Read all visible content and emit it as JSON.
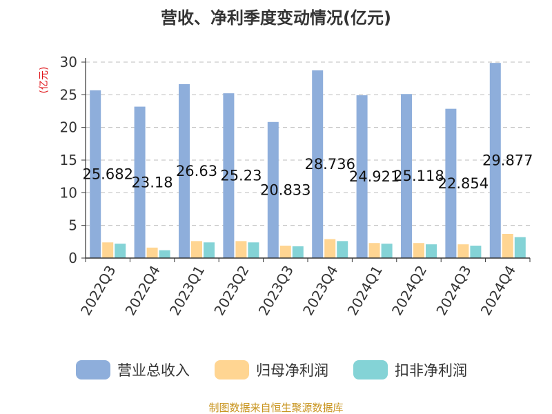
{
  "chart_data": {
    "type": "bar",
    "title": "营收、净利季度变动情况(亿元)",
    "unit": "(亿元)",
    "categories": [
      "2022Q3",
      "2022Q4",
      "2023Q1",
      "2023Q2",
      "2023Q3",
      "2023Q4",
      "2024Q1",
      "2024Q2",
      "2024Q3",
      "2024Q4"
    ],
    "series": [
      {
        "name": "营业总收入",
        "color": "#8eaedb",
        "values": [
          25.682,
          23.18,
          26.63,
          25.23,
          20.833,
          28.736,
          24.921,
          25.118,
          22.854,
          29.877
        ]
      },
      {
        "name": "归母净利润",
        "color": "#ffd592",
        "values": [
          2.4,
          1.6,
          2.6,
          2.6,
          1.9,
          2.9,
          2.3,
          2.3,
          2.1,
          3.7
        ]
      },
      {
        "name": "扣非净利润",
        "color": "#84d3d6",
        "values": [
          2.2,
          1.2,
          2.4,
          2.4,
          1.8,
          2.6,
          2.2,
          2.1,
          1.9,
          3.2
        ]
      }
    ],
    "data_labels": [
      "25.682",
      "23.18",
      "26.63",
      "25.23",
      "20.833",
      "28.736",
      "24.921",
      "25.118",
      "22.854",
      "29.877"
    ],
    "yticks": [
      0,
      5,
      10,
      15,
      20,
      25,
      30
    ],
    "ylim": [
      0,
      30
    ],
    "grid": true,
    "legend_position": "bottom"
  },
  "source_text": "制图数据来自恒生聚源数据库"
}
